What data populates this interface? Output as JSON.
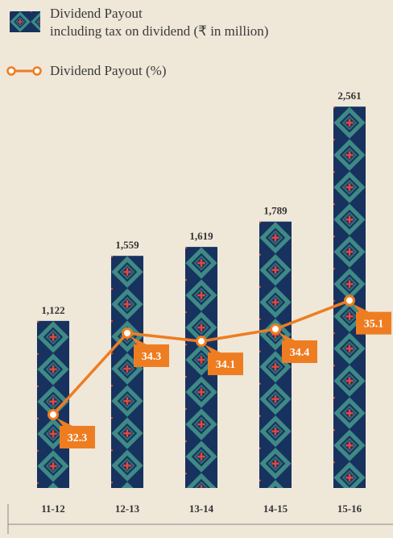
{
  "chart_data": {
    "type": "bar_line",
    "categories": [
      "11-12",
      "12-13",
      "13-14",
      "14-15",
      "15-16"
    ],
    "series": [
      {
        "name": "Dividend Payout\nincluding tax on dividend (₹ in million)",
        "type": "bar",
        "color": "#17325e",
        "values": [
          1122,
          1559,
          1619,
          1789,
          2561
        ],
        "value_labels": [
          "1,122",
          "1,559",
          "1,619",
          "1,789",
          "2,561"
        ]
      },
      {
        "name": "Dividend Payout (%)",
        "type": "line",
        "axis": "y2",
        "color": "#ee7d22",
        "values": [
          32.3,
          34.3,
          34.1,
          34.4,
          35.1
        ]
      }
    ],
    "ylim": [
      0,
      2600
    ],
    "y2lim": [
      30.5,
      40
    ]
  }
}
